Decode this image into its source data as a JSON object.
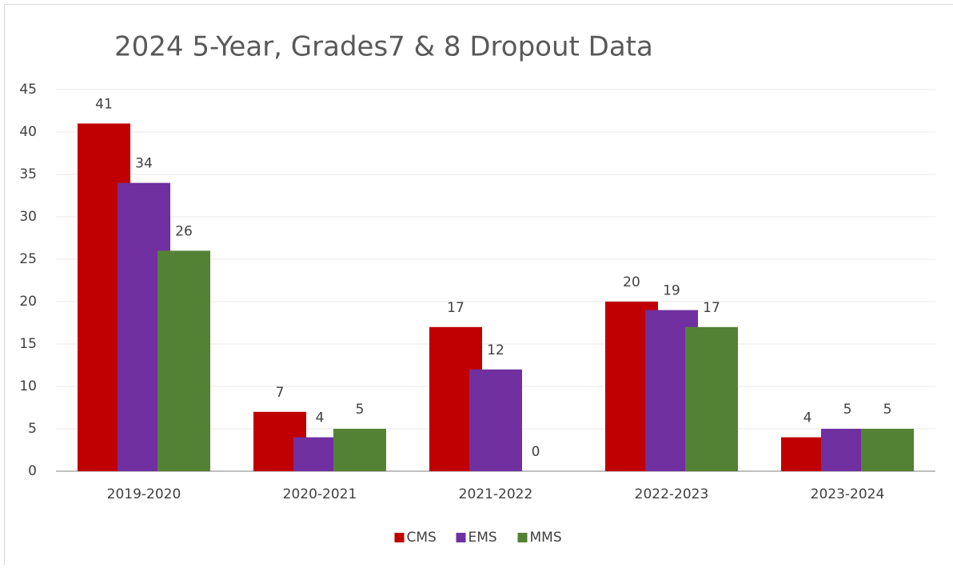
{
  "chart_data": {
    "type": "bar",
    "title": "2024 5-Year, Grades7 & 8 Dropout Data",
    "categories": [
      "2019-2020",
      "2020-2021",
      "2021-2022",
      "2022-2023",
      "2023-2024"
    ],
    "series": [
      {
        "name": "CMS",
        "color": "#c00000",
        "values": [
          41,
          7,
          17,
          20,
          4
        ]
      },
      {
        "name": "EMS",
        "color": "#7030a0",
        "values": [
          34,
          4,
          12,
          19,
          5
        ]
      },
      {
        "name": "MMS",
        "color": "#548235",
        "values": [
          26,
          5,
          0,
          17,
          5
        ]
      }
    ],
    "ylim": [
      0,
      45
    ],
    "yticks": [
      0,
      5,
      10,
      15,
      20,
      25,
      30,
      35,
      40,
      45
    ],
    "grid": true,
    "legend": "bottom"
  }
}
